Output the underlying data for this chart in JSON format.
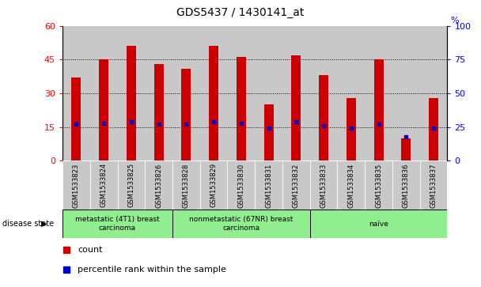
{
  "title": "GDS5437 / 1430141_at",
  "samples": [
    "GSM1533823",
    "GSM1533824",
    "GSM1533825",
    "GSM1533826",
    "GSM1533828",
    "GSM1533829",
    "GSM1533830",
    "GSM1533831",
    "GSM1533832",
    "GSM1533833",
    "GSM1533834",
    "GSM1533835",
    "GSM1533836",
    "GSM1533837"
  ],
  "counts": [
    37,
    45,
    51,
    43,
    41,
    51,
    46,
    25,
    47,
    38,
    28,
    45,
    10,
    28
  ],
  "percentile_ranks": [
    27,
    28,
    29,
    27,
    27,
    29,
    28,
    24,
    29,
    26,
    24,
    27,
    18,
    24
  ],
  "groups": [
    {
      "label": "metastatic (4T1) breast\ncarcinoma",
      "start": 0,
      "end": 4,
      "color": "#90EE90"
    },
    {
      "label": "nonmetastatic (67NR) breast\ncarcinoma",
      "start": 4,
      "end": 9,
      "color": "#90EE90"
    },
    {
      "label": "naïve",
      "start": 9,
      "end": 14,
      "color": "#90EE90"
    }
  ],
  "ylim_left": [
    0,
    60
  ],
  "ylim_right": [
    0,
    100
  ],
  "yticks_left": [
    0,
    15,
    30,
    45,
    60
  ],
  "yticks_right": [
    0,
    25,
    50,
    75,
    100
  ],
  "bar_color": "#CC0000",
  "percentile_color": "#0000CC",
  "bg_color_bars": "#C8C8C8",
  "bar_width": 0.35,
  "disease_state_label": "disease state"
}
